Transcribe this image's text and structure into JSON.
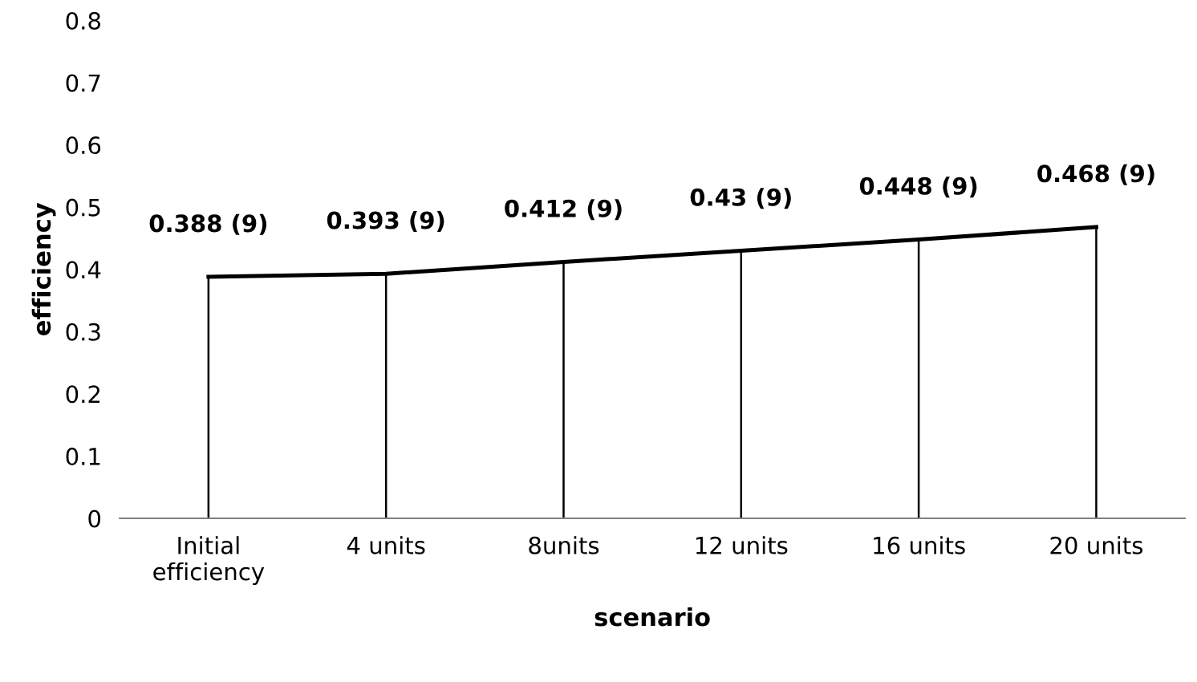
{
  "chart_data": {
    "type": "line",
    "xlabel": "scenario",
    "ylabel": "efficiency",
    "categories": [
      "Initial\nefficiency",
      "4 units",
      "8units",
      "12 units",
      "16 units",
      "20 units"
    ],
    "series": [
      {
        "color": "#000000",
        "values": [
          0.388,
          0.393,
          0.412,
          0.43,
          0.448,
          0.468
        ],
        "errors": [
          [
            0,
            0.388
          ],
          [
            0,
            0.393
          ],
          [
            0,
            0.412
          ],
          [
            0,
            0.43
          ],
          [
            0,
            0.448
          ],
          [
            0,
            0.468
          ]
        ],
        "value_labels": [
          "0.388 (9)",
          "0.393 (9)",
          "0.412 (9)",
          "0.43 (9)",
          "0.448 (9)",
          "0.468 (9)"
        ]
      }
    ],
    "ylim": [
      0,
      0.8
    ],
    "yticks": [
      0,
      0.1,
      0.2,
      0.3,
      0.4,
      0.5,
      0.6,
      0.7,
      0.8
    ],
    "grid": false,
    "legend": false,
    "marker": "none",
    "line_style": "solid"
  }
}
